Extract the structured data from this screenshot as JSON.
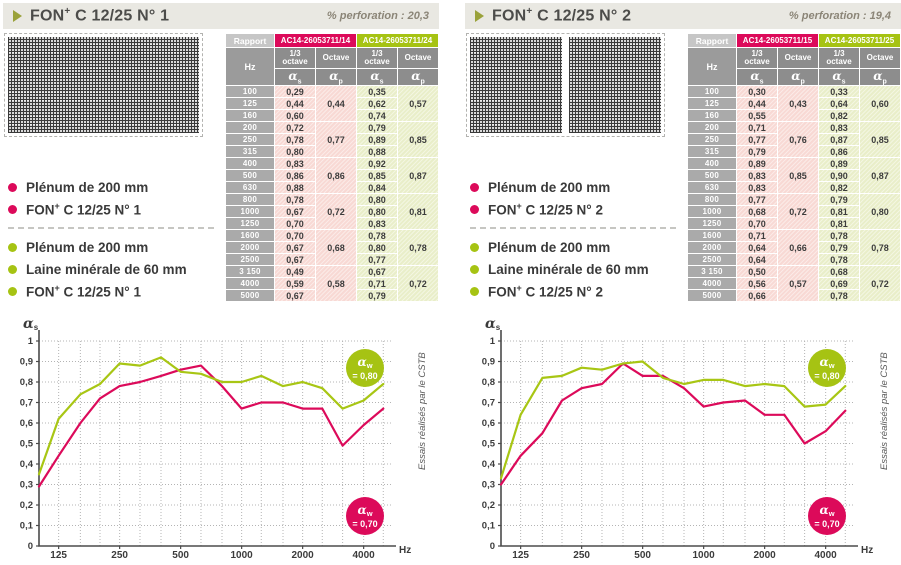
{
  "colors": {
    "pink": "#dc0a5a",
    "green": "#a6c313",
    "chart_pink": "#dc0a5a",
    "chart_green": "#a8c614",
    "grid": "#b4b4b4",
    "axis": "#4b4b4b"
  },
  "panels": [
    {
      "header": {
        "title": "FON+ C 12/25 N° 1",
        "perforation": "% perforation : 20,3"
      },
      "table": {
        "rapport": "Rapport",
        "hz": "Hz",
        "reports": {
          "pink": "AC14-26053711/14",
          "green": "AC14-26053711/24"
        },
        "col_third": "1/3 octave",
        "col_octave": "Octave",
        "alpha_s": "αs",
        "alpha_p": "αp",
        "frequencies": [
          "100",
          "125",
          "160",
          "200",
          "250",
          "315",
          "400",
          "500",
          "630",
          "800",
          "1000",
          "1250",
          "1600",
          "2000",
          "2500",
          "3 150",
          "4000",
          "5000"
        ],
        "third_pink": [
          "0,29",
          "0,44",
          "0,60",
          "0,72",
          "0,78",
          "0,80",
          "0,83",
          "0,86",
          "0,88",
          "0,78",
          "0,67",
          "0,70",
          "0,70",
          "0,67",
          "0,67",
          "0,49",
          "0,59",
          "0,67"
        ],
        "octave_pink": [
          "0,44",
          "0,77",
          "0,86",
          "0,72",
          "0,68",
          "0,58"
        ],
        "third_green": [
          "0,35",
          "0,62",
          "0,74",
          "0,79",
          "0,89",
          "0,88",
          "0,92",
          "0,85",
          "0,84",
          "0,80",
          "0,80",
          "0,83",
          "0,78",
          "0,80",
          "0,77",
          "0,67",
          "0,71",
          "0,79"
        ],
        "octave_green": [
          "0,57",
          "0,85",
          "0,87",
          "0,81",
          "0,78",
          "0,72"
        ]
      },
      "legends": [
        {
          "color": "pink",
          "items": [
            "Plénum de 200 mm",
            "FON+ C 12/25 N° 1"
          ]
        },
        {
          "color": "green",
          "items": [
            "Plénum de 200 mm",
            "Laine minérale de 60 mm",
            "FON+ C 12/25 N° 1"
          ]
        }
      ],
      "badges": {
        "green_alpha": "αw",
        "green_value": "= 0,80",
        "pink_alpha": "αw",
        "pink_value": "= 0,70"
      },
      "note": "Essais réalisés par le CSTB"
    },
    {
      "header": {
        "title": "FON+ C 12/25 N° 2",
        "perforation": "% perforation : 19,4"
      },
      "table": {
        "rapport": "Rapport",
        "hz": "Hz",
        "reports": {
          "pink": "AC14-26053711/15",
          "green": "AC14-26053711/25"
        },
        "col_third": "1/3 octave",
        "col_octave": "Octave",
        "alpha_s": "αs",
        "alpha_p": "αp",
        "frequencies": [
          "100",
          "125",
          "160",
          "200",
          "250",
          "315",
          "400",
          "500",
          "630",
          "800",
          "1000",
          "1250",
          "1600",
          "2000",
          "2500",
          "3 150",
          "4000",
          "5000"
        ],
        "third_pink": [
          "0,30",
          "0,44",
          "0,55",
          "0,71",
          "0,77",
          "0,79",
          "0,89",
          "0,83",
          "0,83",
          "0,77",
          "0,68",
          "0,70",
          "0,71",
          "0,64",
          "0,64",
          "0,50",
          "0,56",
          "0,66"
        ],
        "octave_pink": [
          "0,43",
          "0,76",
          "0,85",
          "0,72",
          "0,66",
          "0,57"
        ],
        "third_green": [
          "0,33",
          "0,64",
          "0,82",
          "0,83",
          "0,87",
          "0,86",
          "0,89",
          "0,90",
          "0,82",
          "0,79",
          "0,81",
          "0,81",
          "0,78",
          "0,79",
          "0,78",
          "0,68",
          "0,69",
          "0,78"
        ],
        "octave_green": [
          "0,60",
          "0,85",
          "0,87",
          "0,80",
          "0,78",
          "0,72"
        ]
      },
      "legends": [
        {
          "color": "pink",
          "items": [
            "Plénum de 200 mm",
            "FON+ C 12/25 N° 2"
          ]
        },
        {
          "color": "green",
          "items": [
            "Plénum de 200 mm",
            "Laine minérale de 60 mm",
            "FON+ C 12/25 N° 2"
          ]
        }
      ],
      "badges": {
        "green_alpha": "αw",
        "green_value": "= 0,80",
        "pink_alpha": "αw",
        "pink_value": "= 0,70"
      },
      "note": "Essais réalisés par le CSTB"
    }
  ],
  "chart_data": [
    {
      "type": "line",
      "title": "FON+ C 12/25 N° 1",
      "xlabel": "Hz",
      "ylabel": "αs",
      "xscale": "log",
      "ylim": [
        0,
        1
      ],
      "x": [
        100,
        125,
        160,
        200,
        250,
        315,
        400,
        500,
        630,
        800,
        1000,
        1250,
        1600,
        2000,
        2500,
        3150,
        4000,
        5000
      ],
      "xticks": [
        125,
        250,
        500,
        1000,
        2000,
        4000
      ],
      "yticks": [
        "0",
        "0,1",
        "0,2",
        "0,3",
        "0,4",
        "0,5",
        "0,6",
        "0,7",
        "0,8",
        "0,9",
        "1"
      ],
      "series": [
        {
          "name": "Plénum de 200 mm + FON+ C 12/25 N° 1",
          "color_key": "chart_pink",
          "alpha_w": "0,70",
          "values": [
            0.29,
            0.44,
            0.6,
            0.72,
            0.78,
            0.8,
            0.83,
            0.86,
            0.88,
            0.78,
            0.67,
            0.7,
            0.7,
            0.67,
            0.67,
            0.49,
            0.59,
            0.67
          ]
        },
        {
          "name": "Plénum de 200 mm + Laine minérale de 60 mm + FON+ C 12/25 N° 1",
          "color_key": "chart_green",
          "alpha_w": "0,80",
          "values": [
            0.35,
            0.62,
            0.74,
            0.79,
            0.89,
            0.88,
            0.92,
            0.85,
            0.84,
            0.8,
            0.8,
            0.83,
            0.78,
            0.8,
            0.77,
            0.67,
            0.71,
            0.79
          ]
        }
      ],
      "legend_position": "badges-in-plot",
      "grid": true
    },
    {
      "type": "line",
      "title": "FON+ C 12/25 N° 2",
      "xlabel": "Hz",
      "ylabel": "αs",
      "xscale": "log",
      "ylim": [
        0,
        1
      ],
      "x": [
        100,
        125,
        160,
        200,
        250,
        315,
        400,
        500,
        630,
        800,
        1000,
        1250,
        1600,
        2000,
        2500,
        3150,
        4000,
        5000
      ],
      "xticks": [
        125,
        250,
        500,
        1000,
        2000,
        4000
      ],
      "yticks": [
        "0",
        "0,1",
        "0,2",
        "0,3",
        "0,4",
        "0,5",
        "0,6",
        "0,7",
        "0,8",
        "0,9",
        "1"
      ],
      "series": [
        {
          "name": "Plénum de 200 mm + FON+ C 12/25 N° 2",
          "color_key": "chart_pink",
          "alpha_w": "0,70",
          "values": [
            0.3,
            0.44,
            0.55,
            0.71,
            0.77,
            0.79,
            0.89,
            0.83,
            0.83,
            0.77,
            0.68,
            0.7,
            0.71,
            0.64,
            0.64,
            0.5,
            0.56,
            0.66
          ]
        },
        {
          "name": "Plénum de 200 mm + Laine minérale de 60 mm + FON+ C 12/25 N° 2",
          "color_key": "chart_green",
          "alpha_w": "0,80",
          "values": [
            0.33,
            0.64,
            0.82,
            0.83,
            0.87,
            0.86,
            0.89,
            0.9,
            0.82,
            0.79,
            0.81,
            0.81,
            0.78,
            0.79,
            0.78,
            0.68,
            0.69,
            0.78
          ]
        }
      ],
      "legend_position": "badges-in-plot",
      "grid": true
    }
  ]
}
